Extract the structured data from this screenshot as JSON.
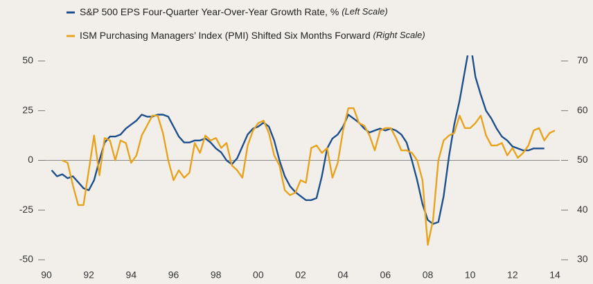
{
  "chart_data": {
    "type": "line",
    "series": [
      {
        "name": "S&P 500 EPS Four-Quarter Year-Over-Year Growth Rate, %",
        "scale_note": "(Left Scale)",
        "color": "#1d4f8c",
        "axis": "y",
        "x": [
          1990.25,
          1990.5,
          1990.75,
          1991,
          1991.25,
          1991.5,
          1991.75,
          1992,
          1992.25,
          1992.5,
          1992.75,
          1993,
          1993.25,
          1993.5,
          1993.75,
          1994,
          1994.25,
          1994.5,
          1994.75,
          1995,
          1995.25,
          1995.5,
          1995.75,
          1996,
          1996.25,
          1996.5,
          1996.75,
          1997,
          1997.25,
          1997.5,
          1997.75,
          1998,
          1998.25,
          1998.5,
          1998.75,
          1999,
          1999.25,
          1999.5,
          1999.75,
          2000,
          2000.25,
          2000.5,
          2000.75,
          2001,
          2001.25,
          2001.5,
          2001.75,
          2002,
          2002.25,
          2002.5,
          2002.75,
          2003,
          2003.25,
          2003.5,
          2003.75,
          2004,
          2004.25,
          2004.5,
          2004.75,
          2005,
          2005.25,
          2005.5,
          2005.75,
          2006,
          2006.25,
          2006.5,
          2006.75,
          2007,
          2007.25,
          2007.5,
          2007.75,
          2008,
          2008.25,
          2008.5,
          2008.75,
          2009,
          2009.25,
          2009.5,
          2009.75,
          2010,
          2010.25,
          2010.5,
          2010.75,
          2011,
          2011.25,
          2011.5,
          2011.75,
          2012,
          2012.25,
          2012.5,
          2012.75,
          2013,
          2013.25,
          2013.5
        ],
        "values": [
          -5,
          -8,
          -7,
          -9,
          -8,
          -11,
          -14,
          -15,
          -10,
          0,
          9,
          12,
          12,
          13,
          16,
          18,
          20,
          23,
          22,
          22,
          23,
          23,
          22,
          17,
          12,
          9,
          9,
          10,
          10,
          11,
          9,
          6,
          4,
          0,
          -2,
          1,
          7,
          13,
          16,
          17,
          19,
          17,
          10,
          0,
          -8,
          -13,
          -16,
          -18,
          -20,
          -20,
          -19,
          -8,
          6,
          11,
          13,
          17,
          23,
          21,
          19,
          16,
          14,
          15,
          16,
          15,
          16,
          15,
          13,
          9,
          0,
          -10,
          -22,
          -30,
          -32,
          -31,
          -18,
          2,
          18,
          30,
          45,
          60,
          42,
          33,
          25,
          21,
          16,
          12,
          10,
          7,
          6,
          5,
          5,
          6,
          6,
          6
        ]
      },
      {
        "name": "ISM Purchasing Managers’ Index (PMI) Shifted Six Months Forward",
        "scale_note": "(Right Scale)",
        "color": "#e8a31e",
        "axis": "y2",
        "x": [
          1990.75,
          1991,
          1991.25,
          1991.5,
          1991.75,
          1992,
          1992.25,
          1992.5,
          1992.75,
          1993,
          1993.25,
          1993.5,
          1993.75,
          1994,
          1994.25,
          1994.5,
          1994.75,
          1995,
          1995.25,
          1995.5,
          1995.75,
          1996,
          1996.25,
          1996.5,
          1996.75,
          1997,
          1997.25,
          1997.5,
          1997.75,
          1998,
          1998.25,
          1998.5,
          1998.75,
          1999,
          1999.25,
          1999.5,
          1999.75,
          2000,
          2000.25,
          2000.5,
          2000.75,
          2001,
          2001.25,
          2001.5,
          2001.75,
          2002,
          2002.25,
          2002.5,
          2002.75,
          2003,
          2003.25,
          2003.5,
          2003.75,
          2004,
          2004.25,
          2004.5,
          2004.75,
          2005,
          2005.25,
          2005.5,
          2005.75,
          2006,
          2006.25,
          2006.5,
          2006.75,
          2007,
          2007.25,
          2007.5,
          2007.75,
          2008,
          2008.25,
          2008.5,
          2008.75,
          2009,
          2009.25,
          2009.5,
          2009.75,
          2010,
          2010.25,
          2010.5,
          2010.75,
          2011,
          2011.25,
          2011.5,
          2011.75,
          2012,
          2012.25,
          2012.5,
          2012.75,
          2013,
          2013.25,
          2013.5,
          2013.75,
          2014
        ],
        "values": [
          50,
          49.5,
          45,
          41,
          41,
          48,
          55,
          47,
          54.5,
          54,
          50,
          54,
          53.5,
          49.5,
          51,
          55,
          57,
          59,
          59,
          55.5,
          50,
          46,
          48,
          46.5,
          47.5,
          53.5,
          51.5,
          55,
          54,
          54.5,
          52.5,
          53.5,
          49,
          48,
          46.5,
          53,
          56,
          57.5,
          58,
          55.5,
          51,
          49,
          44,
          43,
          43.5,
          46,
          45.5,
          52.5,
          53,
          51.5,
          52.5,
          46.5,
          49.5,
          56,
          60.5,
          60.5,
          57.5,
          57,
          55,
          52,
          56,
          56.5,
          56.5,
          54.5,
          52,
          52,
          51.5,
          50,
          46,
          33,
          38,
          50,
          54,
          55,
          55.5,
          59,
          56.5,
          56.5,
          57.5,
          59,
          55,
          53,
          53,
          53.5,
          51,
          52.5,
          50.5,
          51.5,
          53,
          56,
          56.5,
          54,
          55.5,
          56
        ]
      }
    ],
    "xlim": [
      1990,
      2014
    ],
    "xticks": [
      {
        "value": 1990,
        "label": "90"
      },
      {
        "value": 1992,
        "label": "92"
      },
      {
        "value": 1994,
        "label": "94"
      },
      {
        "value": 1996,
        "label": "96"
      },
      {
        "value": 1998,
        "label": "98"
      },
      {
        "value": 2000,
        "label": "00"
      },
      {
        "value": 2002,
        "label": "02"
      },
      {
        "value": 2004,
        "label": "04"
      },
      {
        "value": 2006,
        "label": "06"
      },
      {
        "value": 2008,
        "label": "08"
      },
      {
        "value": 2010,
        "label": "10"
      },
      {
        "value": 2012,
        "label": "12"
      },
      {
        "value": 2014,
        "label": "14"
      }
    ],
    "ylim": [
      -50,
      50
    ],
    "yticks": [
      -50,
      -25,
      0,
      25,
      50
    ],
    "y2lim": [
      30,
      70
    ],
    "y2ticks": [
      30,
      40,
      50,
      60,
      70
    ]
  }
}
